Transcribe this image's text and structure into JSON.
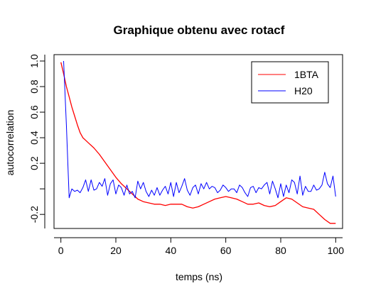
{
  "chart_data": {
    "type": "line",
    "title": "Graphique obtenu avec rotacf",
    "xlabel": "temps (ns)",
    "ylabel": "autocorrelation",
    "xlim": [
      -2.5,
      102.5
    ],
    "ylim": [
      -0.31,
      1.05
    ],
    "x_ticks": [
      0,
      20,
      40,
      60,
      80,
      100
    ],
    "y_ticks": [
      -0.2,
      0.2,
      0.4,
      0.6,
      0.8,
      1.0
    ],
    "y_tick_labels": [
      "-0.2",
      "0.2",
      "0.4",
      "0.6",
      "0.8",
      "1.0"
    ],
    "legend_position": "top-right",
    "series": [
      {
        "name": "1BTA",
        "color": "#ff0000",
        "x": [
          0,
          1,
          2,
          3,
          4,
          5,
          6,
          7,
          8,
          9,
          10,
          12,
          14,
          16,
          18,
          20,
          22,
          24,
          26,
          28,
          30,
          32,
          34,
          36,
          38,
          40,
          42,
          44,
          46,
          48,
          50,
          52,
          54,
          56,
          58,
          60,
          62,
          64,
          66,
          68,
          70,
          72,
          74,
          76,
          78,
          80,
          82,
          84,
          86,
          88,
          90,
          92,
          94,
          96,
          98,
          100
        ],
        "values": [
          0.99,
          0.9,
          0.8,
          0.72,
          0.64,
          0.57,
          0.5,
          0.44,
          0.4,
          0.38,
          0.36,
          0.32,
          0.27,
          0.21,
          0.15,
          0.09,
          0.04,
          0.0,
          -0.04,
          -0.08,
          -0.1,
          -0.11,
          -0.12,
          -0.12,
          -0.13,
          -0.12,
          -0.12,
          -0.12,
          -0.14,
          -0.15,
          -0.14,
          -0.12,
          -0.1,
          -0.08,
          -0.07,
          -0.06,
          -0.07,
          -0.08,
          -0.1,
          -0.12,
          -0.12,
          -0.11,
          -0.13,
          -0.14,
          -0.13,
          -0.1,
          -0.07,
          -0.08,
          -0.11,
          -0.14,
          -0.15,
          -0.16,
          -0.2,
          -0.24,
          -0.27,
          -0.27
        ]
      },
      {
        "name": "H20",
        "color": "#0000ff",
        "x": [
          1,
          2,
          3,
          4,
          5,
          6,
          7,
          8,
          9,
          10,
          11,
          12,
          13,
          14,
          15,
          16,
          17,
          18,
          19,
          20,
          21,
          22,
          23,
          24,
          25,
          26,
          27,
          28,
          29,
          30,
          31,
          32,
          33,
          34,
          35,
          36,
          37,
          38,
          39,
          40,
          41,
          42,
          43,
          44,
          45,
          46,
          47,
          48,
          49,
          50,
          51,
          52,
          53,
          54,
          55,
          56,
          57,
          58,
          59,
          60,
          61,
          62,
          63,
          64,
          65,
          66,
          67,
          68,
          69,
          70,
          71,
          72,
          73,
          74,
          75,
          76,
          77,
          78,
          79,
          80,
          81,
          82,
          83,
          84,
          85,
          86,
          87,
          88,
          89,
          90,
          91,
          92,
          93,
          94,
          95,
          96,
          97,
          98,
          99,
          100
        ],
        "values": [
          1.0,
          0.5,
          -0.07,
          0.0,
          -0.02,
          -0.01,
          -0.03,
          0.01,
          0.07,
          -0.02,
          0.07,
          -0.01,
          0.0,
          0.05,
          0.02,
          0.08,
          -0.05,
          0.04,
          0.07,
          -0.04,
          0.03,
          0.01,
          -0.05,
          0.03,
          -0.04,
          -0.02,
          -0.07,
          0.06,
          0.0,
          0.05,
          -0.02,
          -0.06,
          -0.01,
          -0.05,
          0.01,
          -0.05,
          -0.01,
          0.02,
          -0.04,
          0.05,
          -0.06,
          0.05,
          -0.03,
          0.02,
          0.08,
          -0.01,
          -0.05,
          0.01,
          0.03,
          -0.04,
          0.04,
          0.0,
          0.05,
          0.0,
          0.02,
          0.01,
          -0.03,
          -0.01,
          0.03,
          0.01,
          -0.02,
          0.0,
          0.0,
          -0.03,
          0.03,
          0.01,
          -0.03,
          -0.06,
          0.01,
          0.02,
          -0.03,
          0.01,
          0.0,
          0.03,
          0.05,
          -0.04,
          0.06,
          0.0,
          -0.07,
          0.04,
          -0.06,
          0.03,
          -0.03,
          0.07,
          0.05,
          -0.04,
          0.1,
          -0.05,
          0.02,
          -0.02,
          -0.02,
          0.03,
          -0.01,
          0.0,
          0.03,
          0.13,
          0.04,
          0.01,
          0.1,
          -0.06
        ]
      }
    ]
  }
}
